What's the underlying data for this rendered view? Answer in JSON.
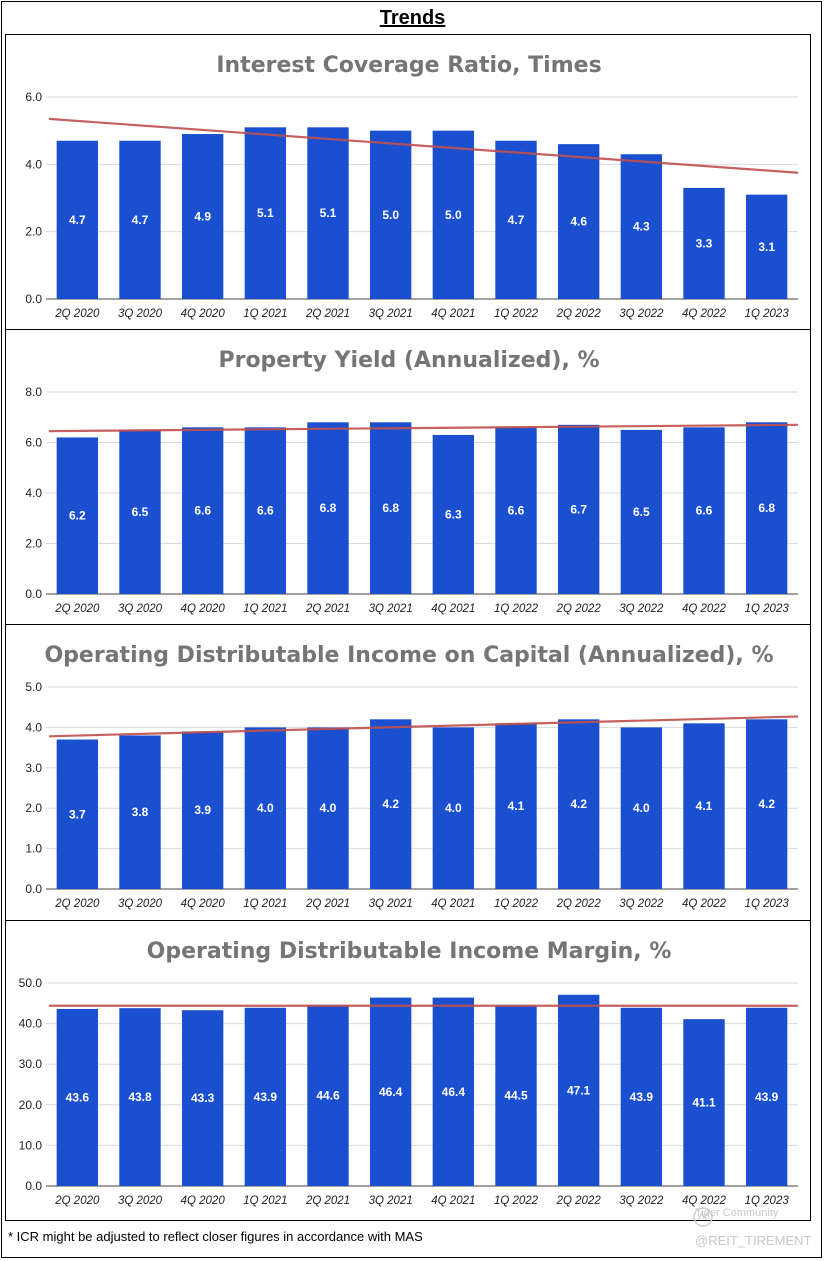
{
  "page": {
    "title": "Trends",
    "footnote": "* ICR might be adjusted to reflect closer figures in accordance with MAS",
    "watermark_community": "Tiger Community",
    "watermark_handle": "@REIT_TIREMENT"
  },
  "colors": {
    "bar": "#1a4fcf",
    "trend": "#c0504d",
    "grid": "#d9d9d9",
    "title": "#757575"
  },
  "chart_data": [
    {
      "type": "bar",
      "title": "Interest Coverage Ratio, Times",
      "categories": [
        "2Q 2020",
        "3Q 2020",
        "4Q 2020",
        "1Q 2021",
        "2Q 2021",
        "3Q 2021",
        "4Q 2021",
        "1Q 2022",
        "2Q 2022",
        "3Q 2022",
        "4Q 2022",
        "1Q 2023"
      ],
      "values": [
        4.7,
        4.7,
        4.9,
        5.1,
        5.1,
        5.0,
        5.0,
        4.7,
        4.6,
        4.3,
        3.3,
        3.1
      ],
      "value_labels": [
        "4.7",
        "4.7",
        "4.9",
        "5.1",
        "5.1",
        "5.0",
        "5.0",
        "4.7",
        "4.6",
        "4.3",
        "3.3",
        "3.1"
      ],
      "yticks": [
        "0.0",
        "2.0",
        "4.0",
        "6.0"
      ],
      "ylim": [
        0,
        6
      ],
      "trendline": [
        5.35,
        3.75
      ],
      "grid": true
    },
    {
      "type": "bar",
      "title": "Property Yield (Annualized), %",
      "categories": [
        "2Q 2020",
        "3Q 2020",
        "4Q 2020",
        "1Q 2021",
        "2Q 2021",
        "3Q 2021",
        "4Q 2021",
        "1Q 2022",
        "2Q 2022",
        "3Q 2022",
        "4Q 2022",
        "1Q 2023"
      ],
      "values": [
        6.2,
        6.5,
        6.6,
        6.6,
        6.8,
        6.8,
        6.3,
        6.6,
        6.7,
        6.5,
        6.6,
        6.8
      ],
      "value_labels": [
        "6.2",
        "6.5",
        "6.6",
        "6.6",
        "6.8",
        "6.8",
        "6.3",
        "6.6",
        "6.7",
        "6.5",
        "6.6",
        "6.8"
      ],
      "yticks": [
        "0.0",
        "2.0",
        "4.0",
        "6.0",
        "8.0"
      ],
      "ylim": [
        0,
        8
      ],
      "trendline": [
        6.45,
        6.7
      ],
      "grid": true
    },
    {
      "type": "bar",
      "title": "Operating Distributable Income on Capital (Annualized), %",
      "categories": [
        "2Q 2020",
        "3Q 2020",
        "4Q 2020",
        "1Q 2021",
        "2Q 2021",
        "3Q 2021",
        "4Q 2021",
        "1Q 2022",
        "2Q 2022",
        "3Q 2022",
        "4Q 2022",
        "1Q 2023"
      ],
      "values": [
        3.7,
        3.8,
        3.9,
        4.0,
        4.0,
        4.2,
        4.0,
        4.1,
        4.2,
        4.0,
        4.1,
        4.2
      ],
      "value_labels": [
        "3.7",
        "3.8",
        "3.9",
        "4.0",
        "4.0",
        "4.2",
        "4.0",
        "4.1",
        "4.2",
        "4.0",
        "4.1",
        "4.2"
      ],
      "yticks": [
        "0.0",
        "1.0",
        "2.0",
        "3.0",
        "4.0",
        "5.0"
      ],
      "ylim": [
        0,
        5
      ],
      "trendline": [
        3.78,
        4.27
      ],
      "grid": true
    },
    {
      "type": "bar",
      "title": "Operating Distributable Income Margin, %",
      "categories": [
        "2Q 2020",
        "3Q 2020",
        "4Q 2020",
        "1Q 2021",
        "2Q 2021",
        "3Q 2021",
        "4Q 2021",
        "1Q 2022",
        "2Q 2022",
        "3Q 2022",
        "4Q 2022",
        "1Q 2023"
      ],
      "values": [
        43.6,
        43.8,
        43.3,
        43.9,
        44.6,
        46.4,
        46.4,
        44.5,
        47.1,
        43.9,
        41.1,
        43.9
      ],
      "value_labels": [
        "43.6",
        "43.8",
        "43.3",
        "43.9",
        "44.6",
        "46.4",
        "46.4",
        "44.5",
        "47.1",
        "43.9",
        "41.1",
        "43.9"
      ],
      "yticks": [
        "0.0",
        "10.0",
        "20.0",
        "30.0",
        "40.0",
        "50.0"
      ],
      "ylim": [
        0,
        50
      ],
      "trendline": [
        44.4,
        44.4
      ],
      "grid": true
    }
  ]
}
